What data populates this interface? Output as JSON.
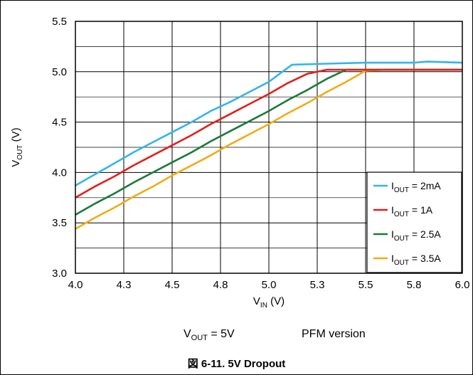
{
  "chart_data": {
    "type": "line",
    "xlabel": {
      "main": "V",
      "sub": "IN",
      "unit": " (V)"
    },
    "ylabel": {
      "main": "V",
      "sub": "OUT",
      "unit": " (V)"
    },
    "xlim": [
      4.0,
      6.0
    ],
    "ylim": [
      3.0,
      5.5
    ],
    "x_ticks": [
      "4.0",
      "4.3",
      "4.5",
      "4.8",
      "5.0",
      "5.3",
      "5.5",
      "5.8",
      "6.0"
    ],
    "y_ticks": [
      "3.0",
      "3.5",
      "4.0",
      "4.5",
      "5.0",
      "5.5"
    ],
    "grid": true,
    "legend_position": "bottom-right",
    "series": [
      {
        "name": "I_OUT = 2mA",
        "legend": {
          "main": "I",
          "sub": "OUT",
          "rest": " = 2mA"
        },
        "color": "#33b5ea",
        "points": [
          [
            4.0,
            3.87
          ],
          [
            4.1,
            3.98
          ],
          [
            4.2,
            4.09
          ],
          [
            4.3,
            4.2
          ],
          [
            4.4,
            4.3
          ],
          [
            4.5,
            4.4
          ],
          [
            4.6,
            4.5
          ],
          [
            4.7,
            4.61
          ],
          [
            4.8,
            4.7
          ],
          [
            4.9,
            4.8
          ],
          [
            5.0,
            4.9
          ],
          [
            5.07,
            5.0
          ],
          [
            5.12,
            5.07
          ],
          [
            5.3,
            5.08
          ],
          [
            5.5,
            5.09
          ],
          [
            5.75,
            5.09
          ],
          [
            5.82,
            5.1
          ],
          [
            6.0,
            5.09
          ]
        ]
      },
      {
        "name": "I_OUT = 1A",
        "legend": {
          "main": "I",
          "sub": "OUT",
          "rest": " = 1A"
        },
        "color": "#e0201b",
        "points": [
          [
            4.0,
            3.75
          ],
          [
            4.1,
            3.86
          ],
          [
            4.2,
            3.96
          ],
          [
            4.3,
            4.07
          ],
          [
            4.4,
            4.17
          ],
          [
            4.5,
            4.27
          ],
          [
            4.6,
            4.37
          ],
          [
            4.7,
            4.48
          ],
          [
            4.8,
            4.58
          ],
          [
            4.9,
            4.68
          ],
          [
            5.0,
            4.78
          ],
          [
            5.1,
            4.89
          ],
          [
            5.2,
            4.98
          ],
          [
            5.3,
            5.02
          ],
          [
            5.5,
            5.02
          ],
          [
            6.0,
            5.02
          ]
        ]
      },
      {
        "name": "I_OUT = 2.5A",
        "legend": {
          "main": "I",
          "sub": "OUT",
          "rest": " = 2.5A"
        },
        "color": "#1b7a38",
        "points": [
          [
            4.0,
            3.58
          ],
          [
            4.1,
            3.69
          ],
          [
            4.2,
            3.79
          ],
          [
            4.3,
            3.9
          ],
          [
            4.4,
            4.0
          ],
          [
            4.5,
            4.1
          ],
          [
            4.6,
            4.2
          ],
          [
            4.7,
            4.31
          ],
          [
            4.8,
            4.41
          ],
          [
            4.9,
            4.51
          ],
          [
            5.0,
            4.61
          ],
          [
            5.1,
            4.72
          ],
          [
            5.2,
            4.82
          ],
          [
            5.3,
            4.93
          ],
          [
            5.4,
            5.02
          ],
          [
            5.5,
            5.02
          ],
          [
            6.0,
            5.02
          ]
        ]
      },
      {
        "name": "I_OUT = 3.5A",
        "legend": {
          "main": "I",
          "sub": "OUT",
          "rest": " = 3.5A"
        },
        "color": "#f0ac16",
        "points": [
          [
            4.0,
            3.44
          ],
          [
            4.1,
            3.55
          ],
          [
            4.2,
            3.65
          ],
          [
            4.3,
            3.76
          ],
          [
            4.4,
            3.86
          ],
          [
            4.5,
            3.97
          ],
          [
            4.6,
            4.07
          ],
          [
            4.7,
            4.17
          ],
          [
            4.8,
            4.28
          ],
          [
            4.9,
            4.38
          ],
          [
            5.0,
            4.48
          ],
          [
            5.1,
            4.59
          ],
          [
            5.2,
            4.69
          ],
          [
            5.3,
            4.8
          ],
          [
            5.4,
            4.9
          ],
          [
            5.5,
            5.01
          ],
          [
            5.6,
            5.02
          ],
          [
            6.0,
            5.02
          ]
        ]
      }
    ]
  },
  "captions": {
    "vout_main": "V",
    "vout_sub": "OUT",
    "vout_rest": " = 5V",
    "version": "PFM version"
  },
  "figure_title": "図 6-11. 5V Dropout"
}
